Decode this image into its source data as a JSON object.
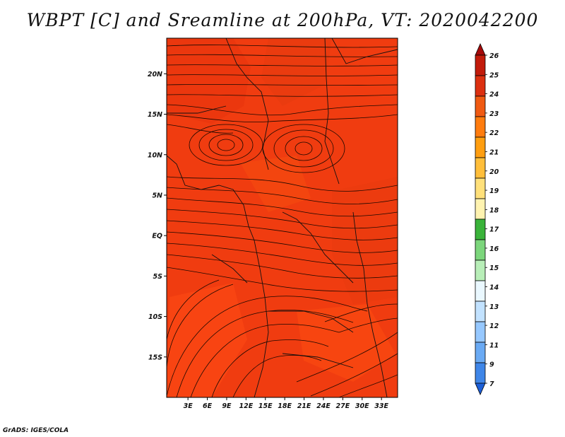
{
  "title": "WBPT [C] and Sreamline at 200hPa, VT: 2020042200",
  "credit": "GrADS: IGES/COLA",
  "map": {
    "lon_range": [
      -0.3,
      35.5
    ],
    "lat_range": [
      -20.0,
      24.4
    ],
    "lon_ticks": [
      "3E",
      "6E",
      "9E",
      "12E",
      "15E",
      "18E",
      "21E",
      "24E",
      "27E",
      "30E",
      "33E"
    ],
    "lat_ticks": [
      "20N",
      "15N",
      "10N",
      "5N",
      "EQ",
      "5S",
      "10S",
      "15S"
    ],
    "field": "wet-bulb potential temperature, mostly 23-25 C",
    "background_color": "#f03c10"
  },
  "colorbar": {
    "labels": [
      "26",
      "25",
      "24",
      "23",
      "22",
      "21",
      "20",
      "19",
      "18",
      "17",
      "16",
      "15",
      "14",
      "13",
      "12",
      "11",
      "9",
      "7"
    ],
    "colors": [
      "#a50a0a",
      "#c21b0b",
      "#dc3010",
      "#f05a12",
      "#ff7c0e",
      "#ff9e10",
      "#ffbe3a",
      "#ffe07a",
      "#fff3b0",
      "#3ab33a",
      "#7cd67c",
      "#b8eeb8",
      "#eaf8ff",
      "#c2e2ff",
      "#96c8ff",
      "#6aaaf4",
      "#3f86e8",
      "#1c5fd8"
    ]
  }
}
